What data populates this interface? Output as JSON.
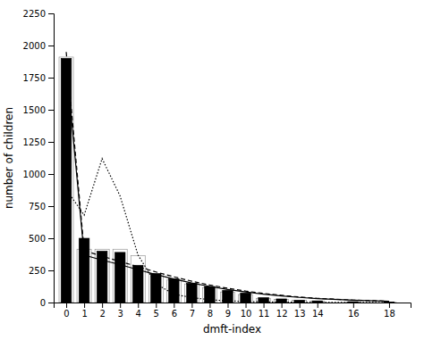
{
  "chart_data": {
    "type": "bar",
    "xlabel": "dmft-index",
    "ylabel": "number of children",
    "x": [
      0,
      1,
      2,
      3,
      4,
      5,
      6,
      7,
      8,
      9,
      10,
      11,
      12,
      13,
      14,
      16,
      18
    ],
    "xlim": [
      -0.7,
      19.2
    ],
    "xticks": [
      0,
      1,
      2,
      3,
      4,
      5,
      6,
      7,
      8,
      9,
      10,
      11,
      12,
      13,
      14,
      16,
      18
    ],
    "ylim": [
      0,
      2250
    ],
    "yticks": [
      0,
      250,
      500,
      750,
      1000,
      1250,
      1500,
      1750,
      2000,
      2250
    ],
    "series": [
      {
        "type": "bar",
        "color": "white",
        "values": [
          1910,
          415,
          415,
          415,
          365,
          225,
          175,
          145,
          115,
          82,
          62,
          33,
          23,
          16,
          11,
          5,
          2
        ]
      },
      {
        "type": "bar",
        "color": "black",
        "values": [
          1900,
          500,
          400,
          390,
          290,
          225,
          185,
          150,
          125,
          95,
          75,
          38,
          28,
          18,
          13,
          7,
          3
        ]
      },
      {
        "type": "line",
        "color": "black",
        "line_style": "solid",
        "values": [
          1870,
          370,
          330,
          295,
          255,
          218,
          183,
          152,
          125,
          102,
          82,
          65,
          51,
          40,
          31,
          18,
          9
        ]
      },
      {
        "type": "line",
        "color": "black",
        "line_style": "dashed",
        "values": [
          1950,
          405,
          360,
          320,
          278,
          238,
          200,
          166,
          136,
          111,
          89,
          71,
          56,
          43,
          33,
          19,
          10
        ]
      },
      {
        "type": "line",
        "color": "black",
        "line_style": "dotted",
        "values": [
          880,
          680,
          1120,
          830,
          370,
          145,
          65,
          38,
          22,
          13,
          8,
          5,
          3,
          1.5,
          0.8,
          0.3,
          0.1
        ]
      }
    ]
  }
}
